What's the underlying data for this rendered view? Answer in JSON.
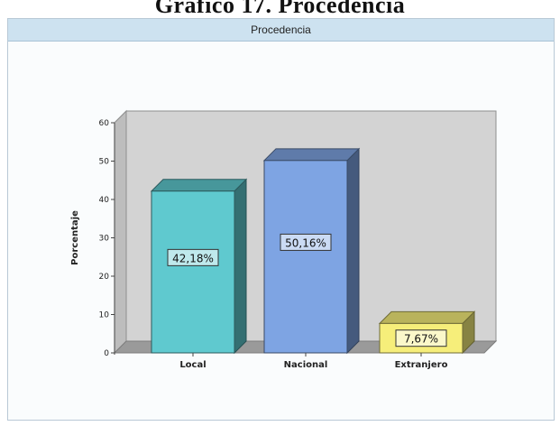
{
  "page": {
    "heading": "Gráfico 17. Procedencia"
  },
  "window": {
    "title": "Procedencia"
  },
  "chart_data": {
    "type": "bar",
    "title": "Procedencia",
    "xlabel": "",
    "ylabel": "Porcentaje",
    "ylim": [
      0,
      60
    ],
    "yticks": [
      0,
      10,
      20,
      30,
      40,
      50,
      60
    ],
    "y_tick_labels": [
      "0",
      "10",
      "20",
      "30",
      "40",
      "50",
      "60"
    ],
    "categories": [
      "Local",
      "Nacional",
      "Extranjero"
    ],
    "values": [
      42.18,
      50.16,
      7.67
    ],
    "data_labels": [
      "42,18%",
      "50,16%",
      "7,67%"
    ],
    "colors": [
      "#5fc9cf",
      "#7ea4e3",
      "#f6ee7a"
    ],
    "grid": false,
    "legend": "none"
  }
}
